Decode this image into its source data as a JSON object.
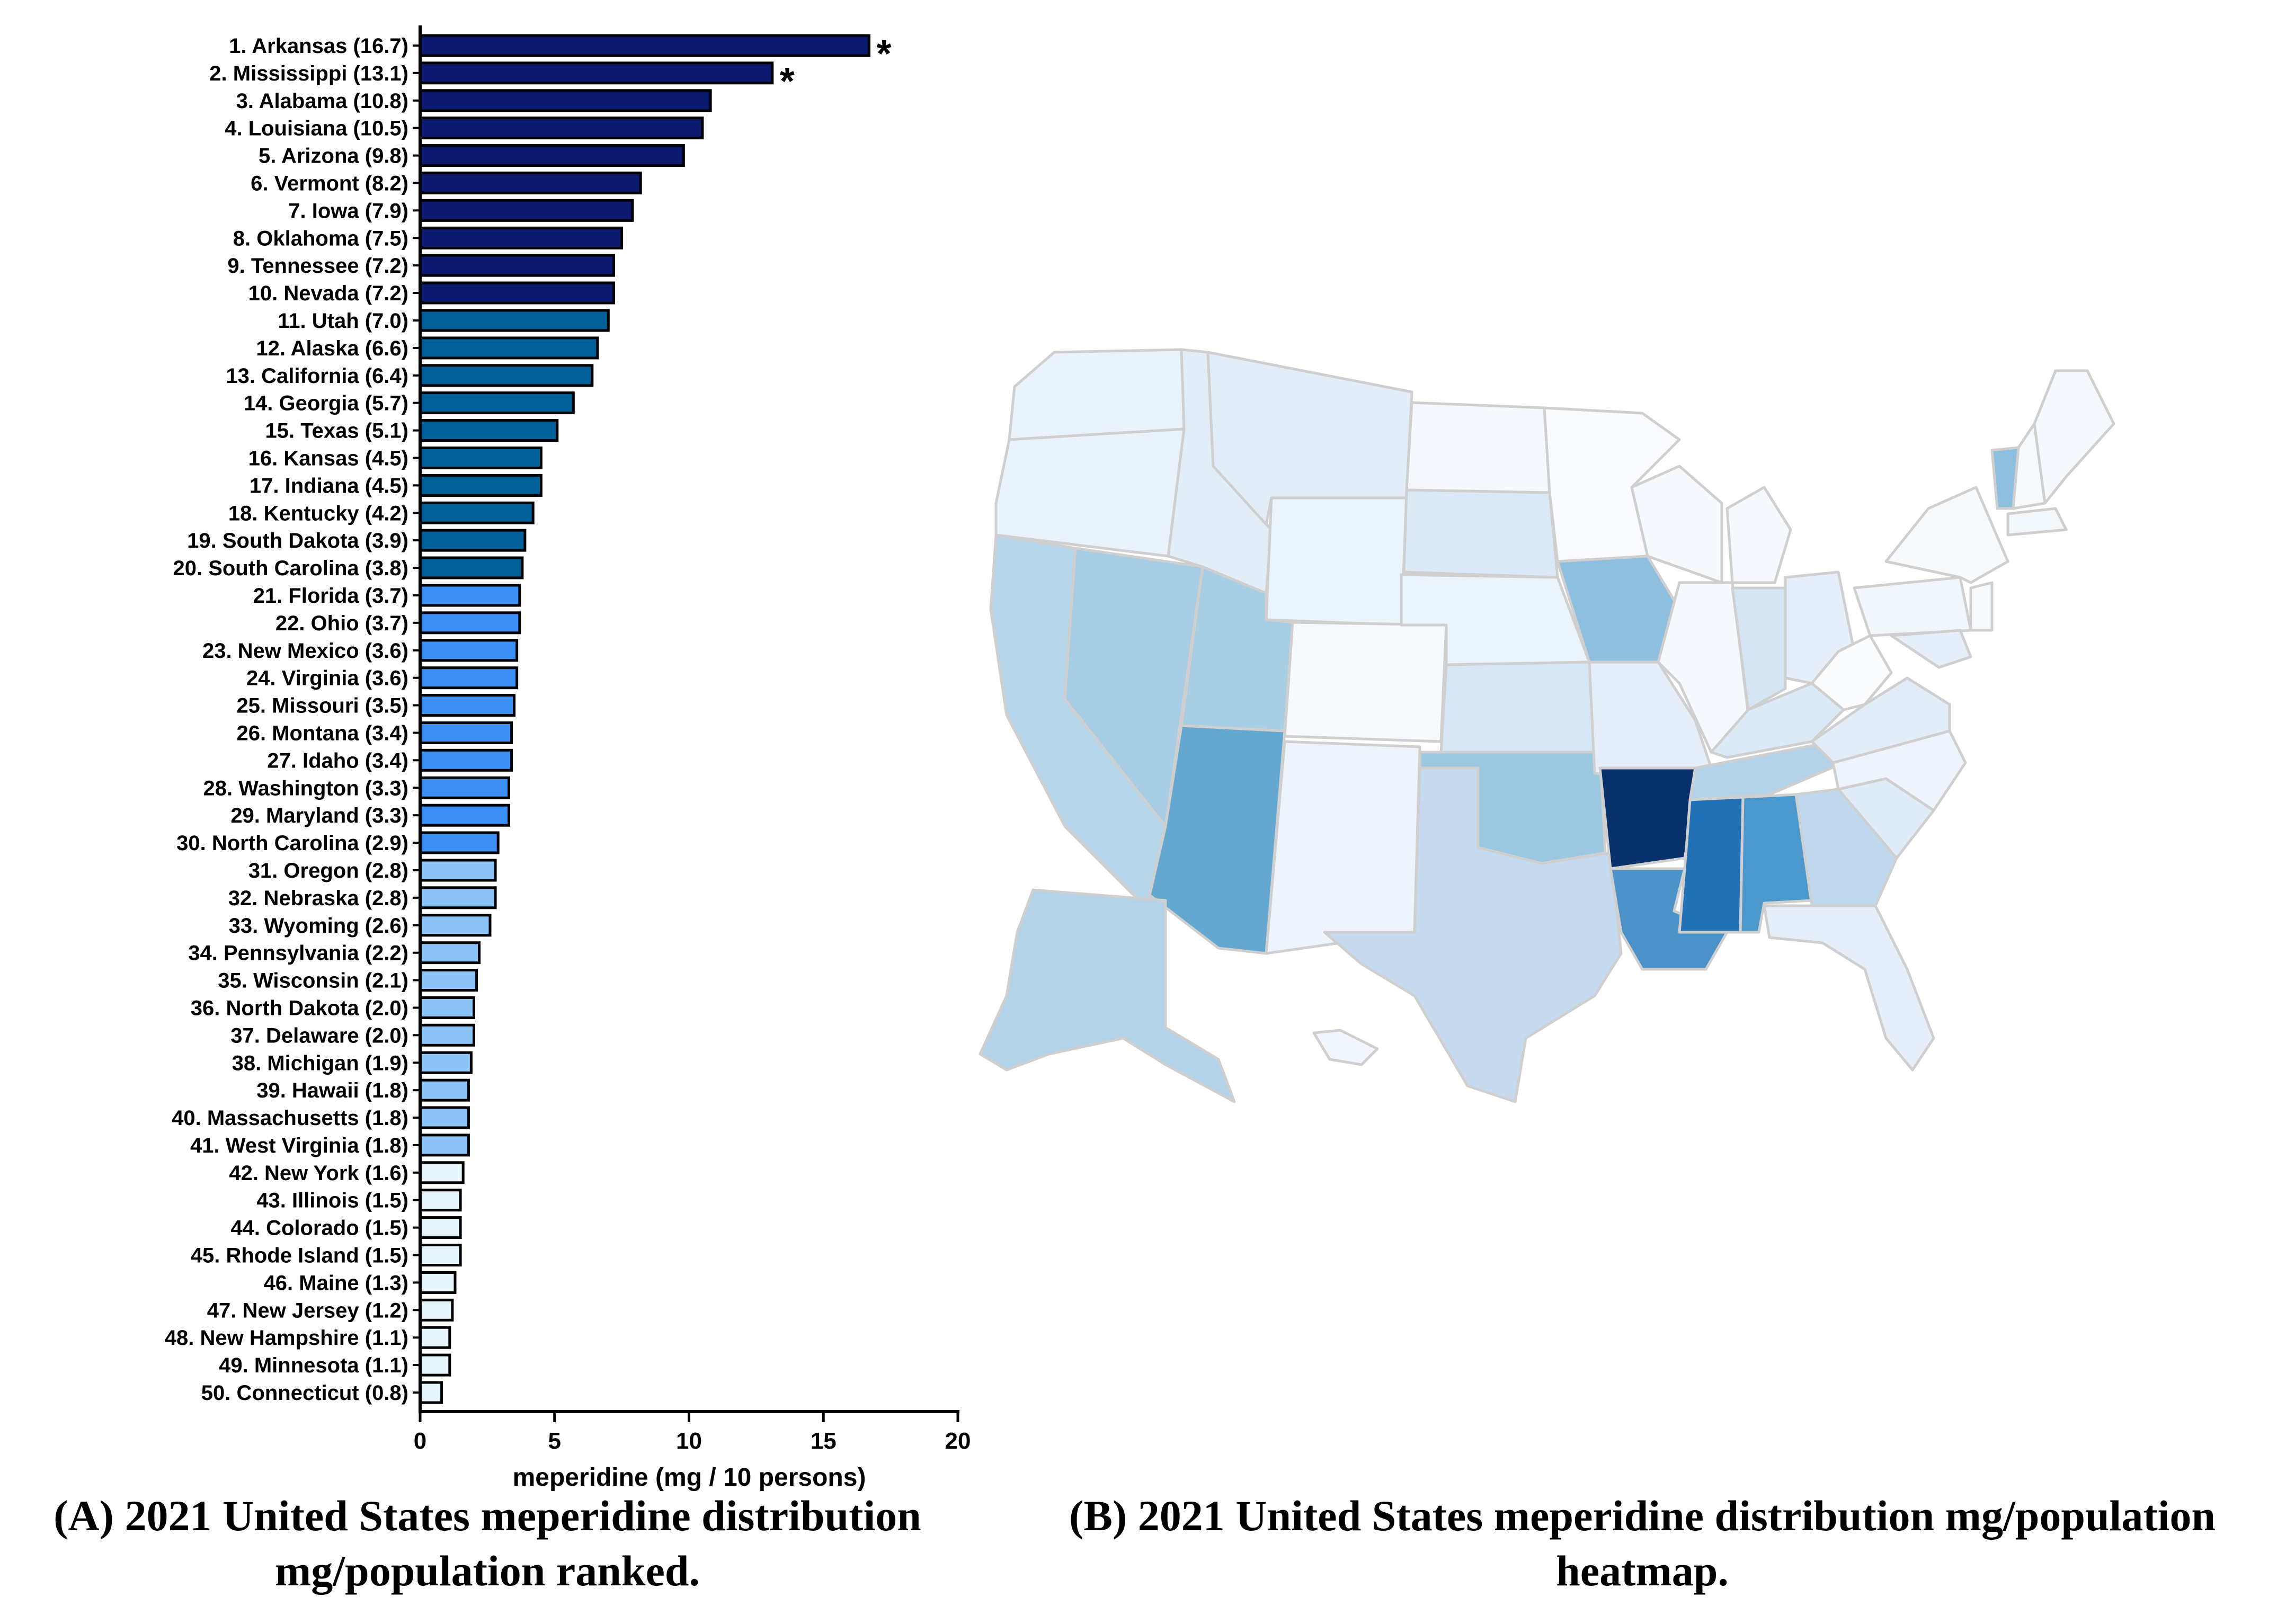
{
  "chart_data": [
    {
      "type": "bar",
      "orientation": "horizontal",
      "panel": "A",
      "categories": [
        "1. Arkansas (16.7)",
        "2. Mississippi (13.1)",
        "3. Alabama (10.8)",
        "4. Louisiana (10.5)",
        "5. Arizona (9.8)",
        "6. Vermont (8.2)",
        "7. Iowa (7.9)",
        "8. Oklahoma (7.5)",
        "9. Tennessee (7.2)",
        "10. Nevada (7.2)",
        "11. Utah (7.0)",
        "12. Alaska (6.6)",
        "13. California (6.4)",
        "14. Georgia (5.7)",
        "15. Texas (5.1)",
        "16. Kansas (4.5)",
        "17. Indiana (4.5)",
        "18. Kentucky (4.2)",
        "19. South Dakota (3.9)",
        "20. South Carolina (3.8)",
        "21. Florida (3.7)",
        "22. Ohio (3.7)",
        "23. New Mexico (3.6)",
        "24. Virginia (3.6)",
        "25. Missouri (3.5)",
        "26. Montana (3.4)",
        "27. Idaho (3.4)",
        "28. Washington (3.3)",
        "29. Maryland (3.3)",
        "30. North Carolina (2.9)",
        "31. Oregon (2.8)",
        "32. Nebraska (2.8)",
        "33. Wyoming (2.6)",
        "34. Pennsylvania (2.2)",
        "35. Wisconsin (2.1)",
        "36. North Dakota (2.0)",
        "37. Delaware (2.0)",
        "38. Michigan (1.9)",
        "39. Hawaii (1.8)",
        "40. Massachusetts (1.8)",
        "41. West Virginia (1.8)",
        "42. New York (1.6)",
        "43. Illinois (1.5)",
        "44. Colorado (1.5)",
        "45. Rhode Island (1.5)",
        "46. Maine (1.3)",
        "47. New Jersey (1.2)",
        "48. New Hampshire (1.1)",
        "49. Minnesota (1.1)",
        "50. Connecticut (0.8)"
      ],
      "values": [
        16.7,
        13.1,
        10.8,
        10.5,
        9.8,
        8.2,
        7.9,
        7.5,
        7.2,
        7.2,
        7.0,
        6.6,
        6.4,
        5.7,
        5.1,
        4.5,
        4.5,
        4.2,
        3.9,
        3.8,
        3.7,
        3.7,
        3.6,
        3.6,
        3.5,
        3.4,
        3.4,
        3.3,
        3.3,
        2.9,
        2.8,
        2.8,
        2.6,
        2.2,
        2.1,
        2.0,
        2.0,
        1.9,
        1.8,
        1.8,
        1.8,
        1.6,
        1.5,
        1.5,
        1.5,
        1.3,
        1.2,
        1.1,
        1.1,
        0.8
      ],
      "group_colors": [
        {
          "from": 1,
          "to": 10,
          "color": "#0b1a6e"
        },
        {
          "from": 11,
          "to": 20,
          "color": "#005f96"
        },
        {
          "from": 21,
          "to": 30,
          "color": "#3b8ff5"
        },
        {
          "from": 31,
          "to": 41,
          "color": "#8cc4f8"
        },
        {
          "from": 42,
          "to": 50,
          "color": "#e6f4fb"
        }
      ],
      "annotations": [
        {
          "category_index": 0,
          "text": "*"
        },
        {
          "category_index": 1,
          "text": "*"
        }
      ],
      "xlabel": "meperidine (mg / 10 persons)",
      "ylabel": "",
      "xlim": [
        0,
        20
      ],
      "xticks": [
        0,
        5,
        10,
        15,
        20
      ],
      "caption": "(A) 2021 United States meperidine distribution mg/population ranked."
    },
    {
      "type": "heatmap",
      "panel": "B",
      "map": "United States by state",
      "caption": "(B) 2021 United States meperidine distribution mg/population heatmap.",
      "color_scale": {
        "low": "#f7fbff",
        "high": "#0b3f7e"
      }
    }
  ]
}
